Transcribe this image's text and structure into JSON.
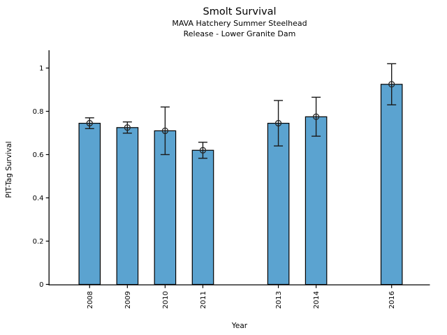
{
  "figure": {
    "background": "#ffffff"
  },
  "chart_data": {
    "type": "bar",
    "title": "Smolt Survival",
    "subtitle": [
      "MAVA Hatchery Summer Steelhead",
      "Release - Lower Granite Dam"
    ],
    "xlabel": "Year",
    "ylabel": "PIT-Tag Survival",
    "categories": [
      2008,
      2009,
      2010,
      2011,
      2013,
      2014,
      2016
    ],
    "values": [
      0.745,
      0.725,
      0.71,
      0.62,
      0.745,
      0.775,
      0.925
    ],
    "error": [
      0.025,
      0.026,
      0.11,
      0.037,
      0.105,
      0.09,
      0.095
    ],
    "error_marker": "open-circle",
    "xtick_labels": [
      "2008",
      "2009",
      "2010",
      "2011",
      "2013",
      "2014",
      "2016"
    ],
    "xtick_rotation": 90,
    "ytick_values": [
      0,
      0.2,
      0.4,
      0.6,
      0.8,
      1.0
    ],
    "ytick_labels": [
      "0",
      "0.2",
      "0.4",
      "0.6",
      "0.8",
      "1"
    ],
    "ylim": [
      0,
      1.08
    ],
    "xlim": [
      2006.9,
      2017.0
    ],
    "grid": false,
    "legend": null,
    "bar_color": "#5BA3D0",
    "bar_edge_color": "#000000",
    "error_color": "#1a1a1a",
    "spine_color": "#000000"
  }
}
